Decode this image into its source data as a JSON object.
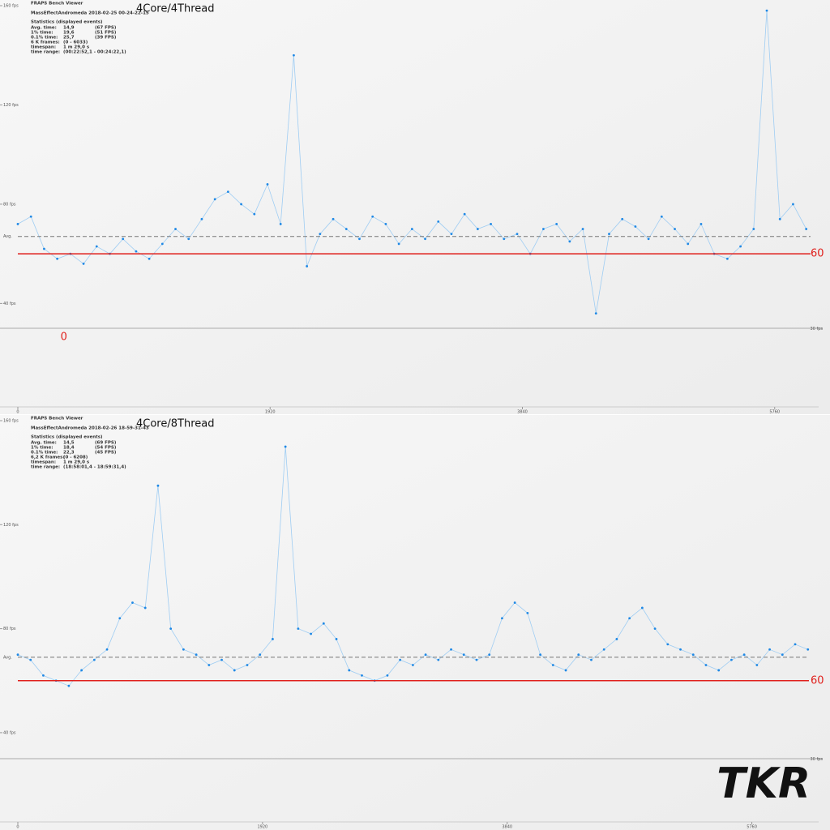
{
  "watermark": "TKR",
  "chart_data": [
    {
      "type": "scatter",
      "title": "4Core/4Thread",
      "app": "FRAPS Bench Viewer",
      "file": "MassEffectAndromeda 2018-02-25 00-24-22-15",
      "stats_heading": "Statistics (displayed events)",
      "stats": [
        [
          "Avg. time:",
          "14,9",
          "(67 FPS)"
        ],
        [
          "1% time:",
          "19,6",
          "(51 FPS)"
        ],
        [
          "0.1% time:",
          "25,7",
          "(39 FPS)"
        ],
        [
          "6 K frames:",
          "(0 - 6033)"
        ],
        [
          "timespan:",
          "1 m 29,0 s"
        ],
        [
          "time range:",
          "(00:22:52,1 - 00:24:22,1)"
        ]
      ],
      "color": "#1e88e5",
      "line_color": "#9fcdf3",
      "xlim": [
        0,
        6033
      ],
      "xticks": [
        0,
        1920,
        3840,
        5760
      ],
      "ylim": [
        30,
        160
      ],
      "yticks": [
        {
          "value": 160,
          "label": "160 fps"
        },
        {
          "value": 120,
          "label": "120 fps"
        },
        {
          "value": 80,
          "label": "80 fps"
        },
        {
          "value": 40,
          "label": "40 fps"
        }
      ],
      "avg_line": {
        "value": 67,
        "label": "Avg."
      },
      "bottom_line": {
        "value": 30,
        "label": "30 fps"
      },
      "reference_line": {
        "value": 60,
        "label": "60",
        "color": "#e0201c"
      },
      "annotation": {
        "text": "0",
        "x": 350,
        "color": "#e0201c"
      },
      "x": [
        0,
        100,
        200,
        300,
        400,
        500,
        600,
        700,
        800,
        900,
        1000,
        1100,
        1200,
        1300,
        1400,
        1500,
        1600,
        1700,
        1800,
        1900,
        2000,
        2100,
        2200,
        2300,
        2400,
        2500,
        2600,
        2700,
        2800,
        2900,
        3000,
        3100,
        3200,
        3300,
        3400,
        3500,
        3600,
        3700,
        3800,
        3900,
        4000,
        4100,
        4200,
        4300,
        4400,
        4500,
        4600,
        4700,
        4800,
        4900,
        5000,
        5100,
        5200,
        5300,
        5400,
        5500,
        5600,
        5700,
        5800,
        5900,
        6000
      ],
      "values": [
        72,
        75,
        62,
        58,
        60,
        56,
        63,
        60,
        66,
        61,
        58,
        64,
        70,
        66,
        74,
        82,
        85,
        80,
        76,
        88,
        72,
        140,
        55,
        68,
        74,
        70,
        66,
        75,
        72,
        64,
        70,
        66,
        73,
        68,
        76,
        70,
        72,
        66,
        68,
        60,
        70,
        72,
        65,
        70,
        36,
        68,
        74,
        71,
        66,
        75,
        70,
        64,
        72,
        60,
        58,
        63,
        70,
        158,
        74,
        80,
        70
      ]
    },
    {
      "type": "scatter",
      "title": "4Core/8Thread",
      "app": "FRAPS Bench Viewer",
      "file": "MassEffectAndromeda 2018-02-26 18-59-31-43",
      "stats_heading": "Statistics (displayed events)",
      "stats": [
        [
          "Avg. time:",
          "14,5",
          "(69 FPS)"
        ],
        [
          "1% time:",
          "18,4",
          "(54 FPS)"
        ],
        [
          "0.1% time:",
          "22,3",
          "(45 FPS)"
        ],
        [
          "6,2 K frames:",
          "(0 - 6208)"
        ],
        [
          "timespan:",
          "1 m 29,0 s"
        ],
        [
          "time range:",
          "(18:58:01,4 - 18:59:31,4)"
        ]
      ],
      "color": "#1e88e5",
      "line_color": "#9fcdf3",
      "xlim": [
        0,
        6208
      ],
      "xticks": [
        0,
        1920,
        3840,
        5760
      ],
      "ylim": [
        30,
        160
      ],
      "yticks": [
        {
          "value": 160,
          "label": "160 fps"
        },
        {
          "value": 120,
          "label": "120 fps"
        },
        {
          "value": 80,
          "label": "80 fps"
        },
        {
          "value": 40,
          "label": "40 fps"
        }
      ],
      "avg_line": {
        "value": 69,
        "label": "Avg."
      },
      "bottom_line": {
        "value": 30,
        "label": "30 fps"
      },
      "reference_line": {
        "value": 60,
        "label": "60",
        "color": "#e0201c"
      },
      "x": [
        0,
        100,
        200,
        300,
        400,
        500,
        600,
        700,
        800,
        900,
        1000,
        1100,
        1200,
        1300,
        1400,
        1500,
        1600,
        1700,
        1800,
        1900,
        2000,
        2100,
        2200,
        2300,
        2400,
        2500,
        2600,
        2700,
        2800,
        2900,
        3000,
        3100,
        3200,
        3300,
        3400,
        3500,
        3600,
        3700,
        3800,
        3900,
        4000,
        4100,
        4200,
        4300,
        4400,
        4500,
        4600,
        4700,
        4800,
        4900,
        5000,
        5100,
        5200,
        5300,
        5400,
        5500,
        5600,
        5700,
        5800,
        5900,
        6000,
        6100,
        6200
      ],
      "values": [
        70,
        68,
        62,
        60,
        58,
        64,
        68,
        72,
        84,
        90,
        88,
        135,
        80,
        72,
        70,
        66,
        68,
        64,
        66,
        70,
        76,
        150,
        80,
        78,
        82,
        76,
        64,
        62,
        60,
        62,
        68,
        66,
        70,
        68,
        72,
        70,
        68,
        70,
        84,
        90,
        86,
        70,
        66,
        64,
        70,
        68,
        72,
        76,
        84,
        88,
        80,
        74,
        72,
        70,
        66,
        64,
        68,
        70,
        66,
        72,
        70,
        74,
        72
      ]
    }
  ]
}
